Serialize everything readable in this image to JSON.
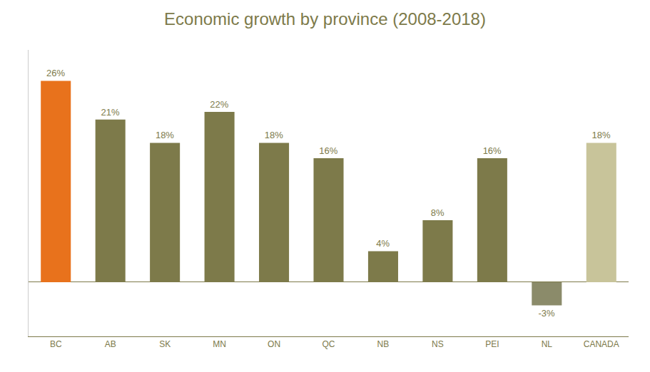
{
  "chart_data": {
    "type": "bar",
    "title": "Economic growth by province (2008-2018)",
    "categories": [
      "BC",
      "AB",
      "SK",
      "MN",
      "ON",
      "QC",
      "NB",
      "NS",
      "PEI",
      "NL",
      "CANADA"
    ],
    "values": [
      26,
      21,
      18,
      22,
      18,
      16,
      4,
      8,
      16,
      -3,
      18
    ],
    "value_labels": [
      "26%",
      "21%",
      "18%",
      "22%",
      "18%",
      "16%",
      "4%",
      "8%",
      "16%",
      "-3%",
      "18%"
    ],
    "colors": [
      "#E8721C",
      "#7D7A4A",
      "#7D7A4A",
      "#7D7A4A",
      "#7D7A4A",
      "#7D7A4A",
      "#7D7A4A",
      "#7D7A4A",
      "#7D7A4A",
      "#8B8B6A",
      "#C8C49A"
    ],
    "color": "#7D7A4A",
    "ylim": [
      -7,
      30
    ],
    "grid": false,
    "data_labels": true,
    "tick_labels": "x"
  }
}
